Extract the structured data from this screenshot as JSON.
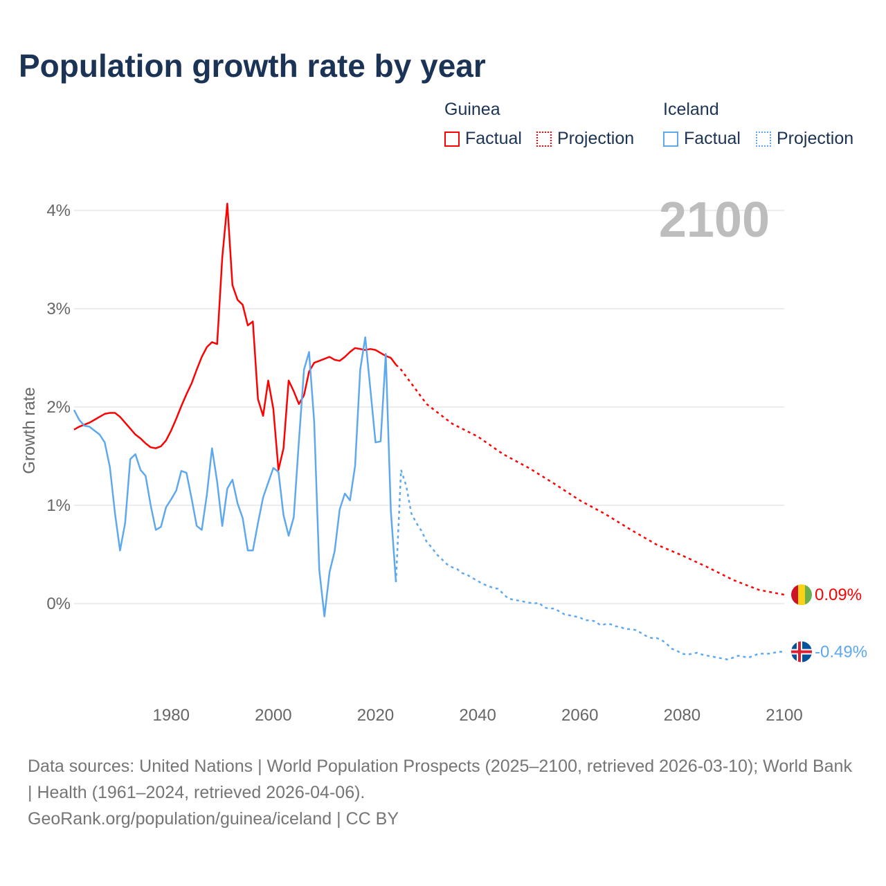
{
  "chart_data": {
    "type": "line",
    "title": "Population growth rate by year",
    "ylabel": "Growth rate",
    "xlabel": "",
    "xlim": [
      1961,
      2100
    ],
    "ylim": [
      -0.9,
      4.3
    ],
    "x_ticks": [
      1980,
      2000,
      2020,
      2040,
      2060,
      2080,
      2100
    ],
    "y_ticks": [
      0,
      1,
      2,
      3,
      4
    ],
    "y_tick_labels": [
      "0%",
      "1%",
      "2%",
      "3%",
      "4%"
    ],
    "grid": true,
    "current_year_label": "2100",
    "legend": {
      "placement": "top-right",
      "groups": [
        {
          "name": "Guinea",
          "factual": "Factual",
          "projection": "Projection"
        },
        {
          "name": "Iceland",
          "factual": "Factual",
          "projection": "Projection"
        }
      ]
    },
    "series": [
      {
        "name": "Guinea",
        "color": "#ff0000",
        "end_label": "0.09%",
        "factual": {
          "start": 1961,
          "values": [
            1.77,
            1.8,
            1.82,
            1.84,
            1.87,
            1.9,
            1.93,
            1.94,
            1.94,
            1.9,
            1.84,
            1.78,
            1.72,
            1.68,
            1.63,
            1.59,
            1.58,
            1.6,
            1.66,
            1.76,
            1.88,
            2.01,
            2.13,
            2.24,
            2.38,
            2.51,
            2.61,
            2.66,
            2.64,
            3.52,
            4.07,
            3.24,
            3.09,
            3.04,
            2.83,
            2.87,
            2.08,
            1.91,
            2.27,
            1.98,
            1.36,
            1.58,
            2.27,
            2.16,
            2.03,
            2.12,
            2.36,
            2.45,
            2.47,
            2.49,
            2.51,
            2.48,
            2.47,
            2.51,
            2.56,
            2.6,
            2.59,
            2.58,
            2.59,
            2.58,
            2.55,
            2.52,
            2.5,
            2.43
          ]
        },
        "projection": {
          "x": [
            2024,
            2025,
            2030,
            2035,
            2040,
            2045,
            2050,
            2055,
            2060,
            2065,
            2070,
            2075,
            2080,
            2085,
            2090,
            2095,
            2100
          ],
          "values": [
            2.43,
            2.38,
            2.03,
            1.83,
            1.7,
            1.52,
            1.38,
            1.22,
            1.05,
            0.91,
            0.75,
            0.6,
            0.49,
            0.37,
            0.24,
            0.14,
            0.09
          ]
        }
      },
      {
        "name": "Iceland",
        "color": "#5ea8ee",
        "end_label": "-0.49%",
        "factual": {
          "start": 1961,
          "values": [
            1.97,
            1.87,
            1.81,
            1.8,
            1.76,
            1.72,
            1.64,
            1.39,
            0.92,
            0.54,
            0.82,
            1.47,
            1.52,
            1.36,
            1.3,
            1.0,
            0.75,
            0.78,
            0.98,
            1.06,
            1.15,
            1.35,
            1.33,
            1.07,
            0.79,
            0.75,
            1.11,
            1.58,
            1.24,
            0.79,
            1.17,
            1.26,
            1.02,
            0.87,
            0.54,
            0.54,
            0.82,
            1.08,
            1.23,
            1.38,
            1.34,
            0.9,
            0.69,
            0.88,
            1.65,
            2.38,
            2.56,
            1.85,
            0.34,
            -0.13,
            0.32,
            0.53,
            0.96,
            1.12,
            1.05,
            1.4,
            2.38,
            2.71,
            2.18,
            1.64,
            1.65,
            2.54,
            0.95,
            0.22
          ]
        },
        "projection": {
          "start": 2024,
          "values": [
            0.22,
            1.36,
            1.2,
            0.92,
            0.82,
            0.74,
            0.63,
            0.57,
            0.5,
            0.45,
            0.4,
            0.37,
            0.35,
            0.31,
            0.29,
            0.26,
            0.23,
            0.2,
            0.18,
            0.16,
            0.15,
            0.1,
            0.05,
            0.04,
            0.03,
            0.02,
            0.01,
            0.0,
            0.01,
            -0.04,
            -0.05,
            -0.05,
            -0.08,
            -0.11,
            -0.12,
            -0.13,
            -0.14,
            -0.17,
            -0.17,
            -0.18,
            -0.22,
            -0.21,
            -0.21,
            -0.23,
            -0.24,
            -0.26,
            -0.26,
            -0.27,
            -0.3,
            -0.33,
            -0.35,
            -0.35,
            -0.37,
            -0.41,
            -0.46,
            -0.48,
            -0.51,
            -0.52,
            -0.51,
            -0.5,
            -0.52,
            -0.53,
            -0.54,
            -0.55,
            -0.56,
            -0.57,
            -0.55,
            -0.53,
            -0.54,
            -0.55,
            -0.53,
            -0.51,
            -0.51,
            -0.51,
            -0.5,
            -0.49,
            -0.49
          ]
        }
      }
    ]
  },
  "source": {
    "line1": "Data sources: United Nations | World Population Prospects (2025–2100, retrieved 2026-03-10); World Bank | Health (1961–2024, retrieved 2026-04-06).",
    "line2": "GeoRank.org/population/guinea/iceland | CC BY"
  }
}
